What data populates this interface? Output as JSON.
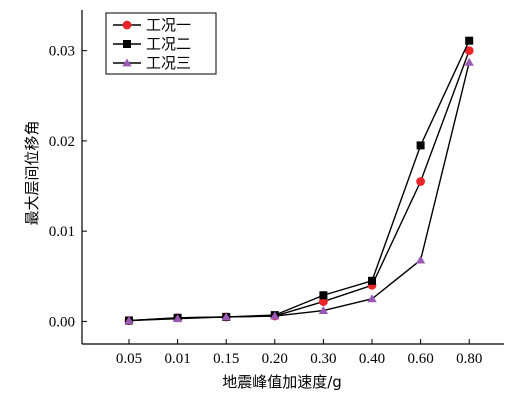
{
  "chart_data": {
    "type": "line",
    "categories": [
      "0.05",
      "0.01",
      "0.15",
      "0.20",
      "0.30",
      "0.40",
      "0.60",
      "0.80"
    ],
    "series": [
      {
        "name": "工况一",
        "marker": "circle",
        "color": "#e8262a",
        "values": [
          0.0001,
          0.0004,
          0.0005,
          0.0006,
          0.0022,
          0.004,
          0.0155,
          0.03
        ]
      },
      {
        "name": "工况二",
        "marker": "square",
        "color": "#000000",
        "values": [
          0.0001,
          0.0004,
          0.0005,
          0.0007,
          0.0029,
          0.0045,
          0.0195,
          0.0311
        ]
      },
      {
        "name": "工况三",
        "marker": "triangle",
        "color": "#9b59b6",
        "values": [
          0.0001,
          0.0003,
          0.0005,
          0.0006,
          0.0012,
          0.0025,
          0.0068,
          0.0287
        ]
      }
    ],
    "xlabel": "地震峰值加速度/g",
    "ylabel": "最大层间位移角",
    "ylim": [
      -0.0025,
      0.0345
    ],
    "yticks": [
      "0.00",
      "0.01",
      "0.02",
      "0.03"
    ],
    "ytick_values": [
      0,
      0.01,
      0.02,
      0.03
    ],
    "legend_position": "top-left",
    "grid": false,
    "line_color": "#000000"
  }
}
